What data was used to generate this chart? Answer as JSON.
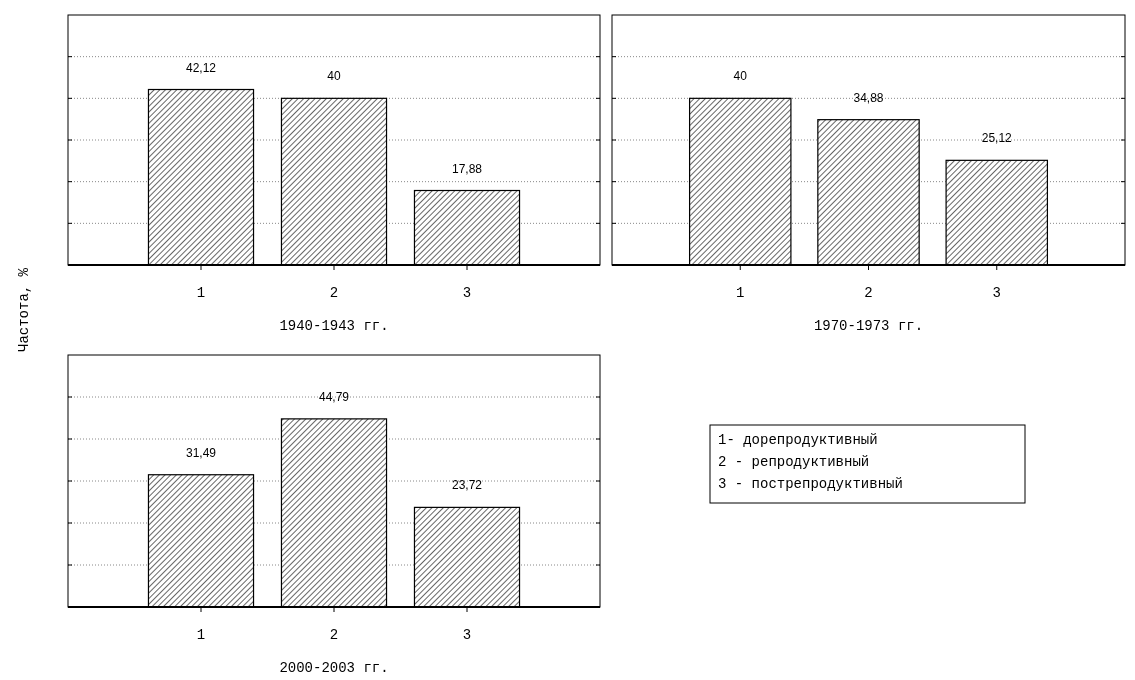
{
  "chart_data": [
    {
      "type": "bar",
      "ylabel": "Частота, %",
      "xlabel": "1940-1943 гг.",
      "categories": [
        "1",
        "2",
        "3"
      ],
      "values": [
        42.12,
        40,
        17.88
      ],
      "value_labels": [
        "42,12",
        "40",
        "17,88"
      ],
      "color": "#000000",
      "ylim": [
        0,
        60
      ],
      "yticks": [
        {
          "value": 10,
          "label": null
        },
        {
          "value": 20,
          "label": null
        },
        {
          "value": 30,
          "label": null
        },
        {
          "value": 40,
          "label": null
        },
        {
          "value": 50,
          "label": null
        }
      ],
      "grid": "y",
      "tick_labels": "x"
    },
    {
      "type": "bar",
      "xlabel": "1970-1973 гг.",
      "categories": [
        "1",
        "2",
        "3"
      ],
      "values": [
        40,
        34.88,
        25.12
      ],
      "value_labels": [
        "40",
        "34,88",
        "25,12"
      ],
      "color": "#000000",
      "ylim": [
        0,
        60
      ],
      "yticks": [
        {
          "value": 10,
          "label": null
        },
        {
          "value": 20,
          "label": null
        },
        {
          "value": 30,
          "label": null
        },
        {
          "value": 40,
          "label": null
        },
        {
          "value": 50,
          "label": null
        }
      ],
      "grid": "y",
      "tick_labels": "x"
    },
    {
      "type": "bar",
      "xlabel": "2000-2003 гг.",
      "categories": [
        "1",
        "2",
        "3"
      ],
      "values": [
        31.49,
        44.79,
        23.72
      ],
      "value_labels": [
        "31,49",
        "44,79",
        "23,72"
      ],
      "color": "#000000",
      "grid": "y",
      "tick_labels": "x",
      "annotations": [
        "1- дорепродуктивный",
        "2 - репродуктивный",
        "3 - пострепродуктивный"
      ]
    }
  ]
}
